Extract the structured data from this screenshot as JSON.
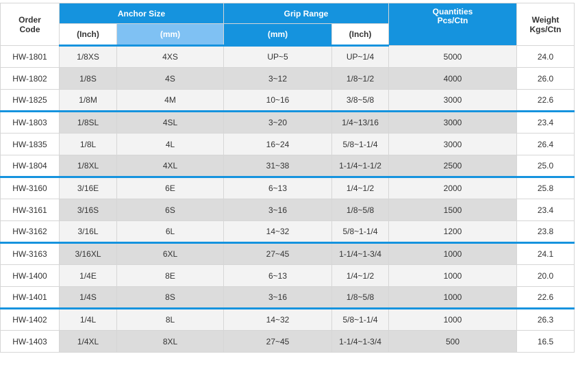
{
  "headers": {
    "order_code": [
      "Order",
      "Code"
    ],
    "anchor_size": "Anchor Size",
    "grip_range": "Grip Range",
    "quantities": [
      "Quantities",
      "Pcs/Ctn"
    ],
    "weight": [
      "Weight",
      "Kgs/Ctn"
    ],
    "sub_inch_1": "(Inch)",
    "sub_mm_1": "(mm)",
    "sub_mm_2": "(mm)",
    "sub_inch_2": "(Inch)"
  },
  "colors": {
    "header_blue": "#1593de",
    "header_light_blue": "#7fc1f3",
    "row_shade": "#dcdcdc",
    "row_light": "#f3f3f3",
    "group_divider": "#1593de"
  },
  "rows": [
    {
      "code": "HW-1801",
      "size_inch": "1/8XS",
      "size_mm": "4XS",
      "grip_mm": "UP~5",
      "grip_inch": "UP~1/4",
      "qty": "5000",
      "weight": "24.0"
    },
    {
      "code": "HW-1802",
      "size_inch": "1/8S",
      "size_mm": "4S",
      "grip_mm": "3~12",
      "grip_inch": "1/8~1/2",
      "qty": "4000",
      "weight": "26.0"
    },
    {
      "code": "HW-1825",
      "size_inch": "1/8M",
      "size_mm": "4M",
      "grip_mm": "10~16",
      "grip_inch": "3/8~5/8",
      "qty": "3000",
      "weight": "22.6"
    },
    {
      "code": "HW-1803",
      "size_inch": "1/8SL",
      "size_mm": "4SL",
      "grip_mm": "3~20",
      "grip_inch": "1/4~13/16",
      "qty": "3000",
      "weight": "23.4"
    },
    {
      "code": "HW-1835",
      "size_inch": "1/8L",
      "size_mm": "4L",
      "grip_mm": "16~24",
      "grip_inch": "5/8~1-1/4",
      "qty": "3000",
      "weight": "26.4"
    },
    {
      "code": "HW-1804",
      "size_inch": "1/8XL",
      "size_mm": "4XL",
      "grip_mm": "31~38",
      "grip_inch": "1-1/4~1-1/2",
      "qty": "2500",
      "weight": "25.0"
    },
    {
      "code": "HW-3160",
      "size_inch": "3/16E",
      "size_mm": "6E",
      "grip_mm": "6~13",
      "grip_inch": "1/4~1/2",
      "qty": "2000",
      "weight": "25.8"
    },
    {
      "code": "HW-3161",
      "size_inch": "3/16S",
      "size_mm": "6S",
      "grip_mm": "3~16",
      "grip_inch": "1/8~5/8",
      "qty": "1500",
      "weight": "23.4"
    },
    {
      "code": "HW-3162",
      "size_inch": "3/16L",
      "size_mm": "6L",
      "grip_mm": "14~32",
      "grip_inch": "5/8~1-1/4",
      "qty": "1200",
      "weight": "23.8"
    },
    {
      "code": "HW-3163",
      "size_inch": "3/16XL",
      "size_mm": "6XL",
      "grip_mm": "27~45",
      "grip_inch": "1-1/4~1-3/4",
      "qty": "1000",
      "weight": "24.1"
    },
    {
      "code": "HW-1400",
      "size_inch": "1/4E",
      "size_mm": "8E",
      "grip_mm": "6~13",
      "grip_inch": "1/4~1/2",
      "qty": "1000",
      "weight": "20.0"
    },
    {
      "code": "HW-1401",
      "size_inch": "1/4S",
      "size_mm": "8S",
      "grip_mm": "3~16",
      "grip_inch": "1/8~5/8",
      "qty": "1000",
      "weight": "22.6"
    },
    {
      "code": "HW-1402",
      "size_inch": "1/4L",
      "size_mm": "8L",
      "grip_mm": "14~32",
      "grip_inch": "5/8~1-1/4",
      "qty": "1000",
      "weight": "26.3"
    },
    {
      "code": "HW-1403",
      "size_inch": "1/4XL",
      "size_mm": "8XL",
      "grip_mm": "27~45",
      "grip_inch": "1-1/4~1-3/4",
      "qty": "500",
      "weight": "16.5"
    }
  ]
}
